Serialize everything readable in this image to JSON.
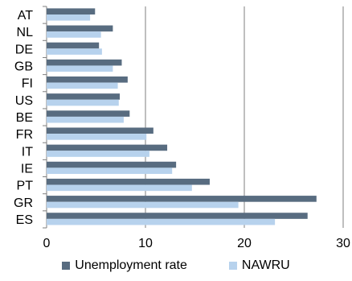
{
  "chart_data": {
    "type": "bar",
    "orientation": "horizontal",
    "title": "",
    "xlabel": "",
    "ylabel": "",
    "categories": [
      "AT",
      "NL",
      "DE",
      "GB",
      "FI",
      "US",
      "BE",
      "FR",
      "IT",
      "IE",
      "PT",
      "GR",
      "ES"
    ],
    "series": [
      {
        "name": "Unemployment rate",
        "color": "#586c80",
        "values": [
          4.9,
          6.7,
          5.3,
          7.6,
          8.2,
          7.4,
          8.4,
          10.8,
          12.2,
          13.1,
          16.5,
          27.3,
          26.4
        ]
      },
      {
        "name": "NAWRU",
        "color": "#b7d2ed",
        "values": [
          4.4,
          5.5,
          5.6,
          6.7,
          7.2,
          7.3,
          7.8,
          10.1,
          10.4,
          12.7,
          14.7,
          19.4,
          23.1
        ]
      }
    ],
    "xlim": [
      0,
      30
    ],
    "xticks": [
      "0",
      "10",
      "20",
      "30"
    ],
    "grid": "vertical",
    "legend_position": "bottom"
  }
}
